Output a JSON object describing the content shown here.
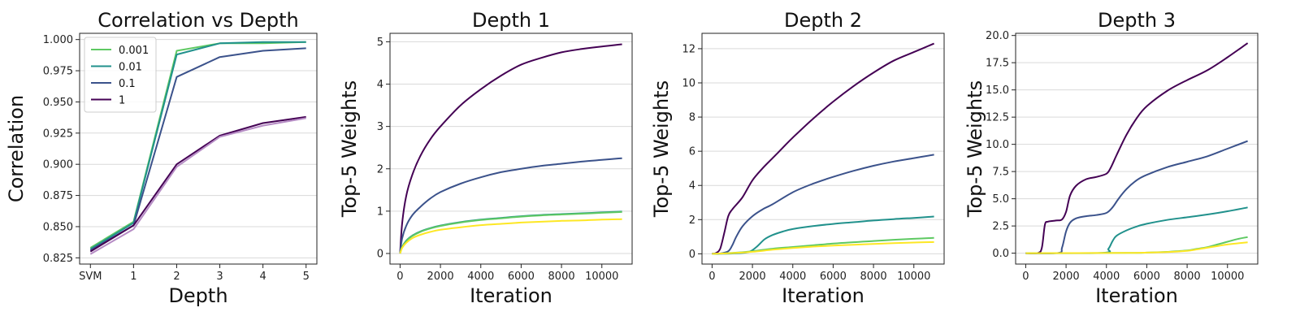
{
  "colors": {
    "0.001": "#5ec962",
    "0.01": "#21918c",
    "0.1": "#3b528b",
    "1": "#440154",
    "extra": "#fde725"
  },
  "chart_data": [
    {
      "type": "line",
      "title": "Correlation vs Depth",
      "xlabel": "Depth",
      "ylabel": "Correlation",
      "categories": [
        "SVM",
        "1",
        "2",
        "3",
        "4",
        "5"
      ],
      "ylim": [
        0.82,
        1.005
      ],
      "yticks": [
        "0.825",
        "0.850",
        "0.875",
        "0.900",
        "0.925",
        "0.950",
        "0.975",
        "1.000"
      ],
      "grid": "horizontal",
      "legend_position": "top-left",
      "series": [
        {
          "name": "0.001",
          "color": "#5ec962",
          "values": [
            0.833,
            0.854,
            0.991,
            0.997,
            0.997,
            0.998
          ]
        },
        {
          "name": "0.01",
          "color": "#21918c",
          "values": [
            0.832,
            0.853,
            0.988,
            0.997,
            0.998,
            0.998
          ]
        },
        {
          "name": "0.1",
          "color": "#3b528b",
          "values": [
            0.831,
            0.851,
            0.97,
            0.986,
            0.991,
            0.993
          ]
        },
        {
          "name": "1",
          "color": "#440154",
          "values": [
            0.83,
            0.851,
            0.9,
            0.923,
            0.933,
            0.938
          ]
        },
        {
          "name": "",
          "color": "#b58bc4",
          "values": [
            0.828,
            0.848,
            0.898,
            0.922,
            0.931,
            0.937
          ]
        }
      ]
    },
    {
      "type": "line",
      "title": "Depth 1",
      "xlabel": "Iteration",
      "ylabel": "Top-5 Weights",
      "xlim": [
        -500,
        11500
      ],
      "ylim": [
        -0.25,
        5.2
      ],
      "xticks": [
        "0",
        "2000",
        "4000",
        "6000",
        "8000",
        "10000"
      ],
      "yticks": [
        "0",
        "1",
        "2",
        "3",
        "4",
        "5"
      ],
      "grid": "horizontal",
      "series": [
        {
          "name": "1",
          "color": "#440154",
          "x": [
            0,
            100,
            300,
            600,
            1000,
            1500,
            2000,
            3000,
            4000,
            5000,
            6000,
            7000,
            8000,
            9000,
            10000,
            11000
          ],
          "y": [
            0,
            0.7,
            1.35,
            1.85,
            2.3,
            2.7,
            3.0,
            3.5,
            3.88,
            4.2,
            4.46,
            4.62,
            4.75,
            4.83,
            4.89,
            4.94
          ]
        },
        {
          "name": "0.1",
          "color": "#3b528b",
          "x": [
            0,
            100,
            300,
            600,
            1000,
            1500,
            2000,
            3000,
            4000,
            5000,
            6000,
            7000,
            8000,
            9000,
            10000,
            11000
          ],
          "y": [
            0,
            0.35,
            0.65,
            0.9,
            1.1,
            1.3,
            1.45,
            1.65,
            1.8,
            1.92,
            2.0,
            2.07,
            2.12,
            2.17,
            2.21,
            2.25
          ]
        },
        {
          "name": "0.01",
          "color": "#21918c",
          "x": [
            0,
            100,
            300,
            600,
            1000,
            1500,
            2000,
            3000,
            4000,
            5000,
            6000,
            7000,
            8000,
            9000,
            10000,
            11000
          ],
          "y": [
            0,
            0.15,
            0.3,
            0.42,
            0.52,
            0.6,
            0.66,
            0.74,
            0.8,
            0.84,
            0.88,
            0.91,
            0.93,
            0.95,
            0.97,
            0.99
          ]
        },
        {
          "name": "0.001",
          "color": "#5ec962",
          "x": [
            0,
            100,
            300,
            600,
            1000,
            1500,
            2000,
            3000,
            4000,
            5000,
            6000,
            7000,
            8000,
            9000,
            10000,
            11000
          ],
          "y": [
            0,
            0.15,
            0.29,
            0.41,
            0.51,
            0.59,
            0.65,
            0.73,
            0.79,
            0.83,
            0.87,
            0.9,
            0.92,
            0.94,
            0.96,
            0.98
          ]
        },
        {
          "name": "",
          "color": "#fde725",
          "x": [
            0,
            100,
            300,
            600,
            1000,
            1500,
            2000,
            3000,
            4000,
            5000,
            6000,
            7000,
            8000,
            9000,
            10000,
            11000
          ],
          "y": [
            0,
            0.13,
            0.25,
            0.36,
            0.44,
            0.51,
            0.56,
            0.62,
            0.67,
            0.7,
            0.73,
            0.75,
            0.77,
            0.78,
            0.8,
            0.81
          ]
        }
      ]
    },
    {
      "type": "line",
      "title": "Depth 2",
      "xlabel": "Iteration",
      "ylabel": "Top-5 Weights",
      "xlim": [
        -500,
        11500
      ],
      "ylim": [
        -0.6,
        12.9
      ],
      "xticks": [
        "0",
        "2000",
        "4000",
        "6000",
        "8000",
        "10000"
      ],
      "yticks": [
        "0",
        "2",
        "4",
        "6",
        "8",
        "10",
        "12"
      ],
      "grid": "horizontal",
      "series": [
        {
          "name": "1",
          "color": "#440154",
          "x": [
            0,
            200,
            400,
            600,
            800,
            1000,
            1500,
            2000,
            2500,
            3000,
            3500,
            4000,
            5000,
            6000,
            7000,
            8000,
            9000,
            10000,
            11000
          ],
          "y": [
            0,
            0.05,
            0.3,
            1.2,
            2.2,
            2.6,
            3.3,
            4.3,
            5.0,
            5.6,
            6.2,
            6.8,
            7.9,
            8.9,
            9.8,
            10.6,
            11.3,
            11.8,
            12.3
          ]
        },
        {
          "name": "0.1",
          "color": "#3b528b",
          "x": [
            0,
            400,
            800,
            1000,
            1200,
            1500,
            2000,
            2500,
            3000,
            4000,
            5000,
            6000,
            7000,
            8000,
            9000,
            10000,
            11000
          ],
          "y": [
            0,
            0.02,
            0.15,
            0.5,
            1.0,
            1.6,
            2.2,
            2.6,
            2.9,
            3.6,
            4.1,
            4.5,
            4.85,
            5.15,
            5.4,
            5.6,
            5.8
          ]
        },
        {
          "name": "0.01",
          "color": "#21918c",
          "x": [
            0,
            1000,
            1800,
            2200,
            2600,
            3000,
            3500,
            4000,
            5000,
            6000,
            7000,
            8000,
            9000,
            10000,
            11000
          ],
          "y": [
            0,
            0.02,
            0.1,
            0.4,
            0.85,
            1.1,
            1.3,
            1.45,
            1.62,
            1.75,
            1.85,
            1.95,
            2.03,
            2.1,
            2.18
          ]
        },
        {
          "name": "0.001",
          "color": "#5ec962",
          "x": [
            0,
            1000,
            2000,
            3000,
            4000,
            5000,
            6000,
            7000,
            8000,
            9000,
            10000,
            11000
          ],
          "y": [
            0,
            0.05,
            0.15,
            0.3,
            0.4,
            0.5,
            0.6,
            0.68,
            0.75,
            0.82,
            0.88,
            0.93
          ]
        },
        {
          "name": "",
          "color": "#fde725",
          "x": [
            0,
            1000,
            2000,
            3000,
            4000,
            5000,
            6000,
            7000,
            8000,
            9000,
            10000,
            11000
          ],
          "y": [
            0,
            0.04,
            0.12,
            0.24,
            0.34,
            0.42,
            0.48,
            0.53,
            0.58,
            0.62,
            0.66,
            0.69
          ]
        }
      ]
    },
    {
      "type": "line",
      "title": "Depth 3",
      "xlabel": "Iteration",
      "ylabel": "Top-5 Weights",
      "xlim": [
        -500,
        11500
      ],
      "ylim": [
        -1.0,
        20.2
      ],
      "xticks": [
        "0",
        "2000",
        "4000",
        "6000",
        "8000",
        "10000"
      ],
      "yticks": [
        "0.0",
        "2.5",
        "5.0",
        "7.5",
        "10.0",
        "12.5",
        "15.0",
        "17.5",
        "20.0"
      ],
      "grid": "horizontal",
      "series": [
        {
          "name": "1",
          "color": "#440154",
          "x": [
            0,
            600,
            800,
            950,
            1100,
            1500,
            1800,
            2000,
            2200,
            2500,
            3000,
            3500,
            4000,
            4200,
            4500,
            5000,
            5500,
            6000,
            7000,
            8000,
            9000,
            10000,
            11000
          ],
          "y": [
            0,
            0.02,
            0.5,
            2.6,
            2.9,
            3.0,
            3.1,
            3.8,
            5.3,
            6.2,
            6.8,
            7.0,
            7.3,
            7.8,
            9.0,
            10.9,
            12.4,
            13.5,
            14.9,
            15.9,
            16.8,
            18.0,
            19.3
          ]
        },
        {
          "name": "0.1",
          "color": "#3b528b",
          "x": [
            0,
            1600,
            1800,
            2000,
            2200,
            2500,
            3000,
            3500,
            4000,
            4300,
            4600,
            5000,
            5500,
            6000,
            7000,
            8000,
            9000,
            10000,
            11000
          ],
          "y": [
            0,
            0.02,
            0.5,
            2.0,
            2.8,
            3.2,
            3.4,
            3.5,
            3.7,
            4.2,
            5.0,
            5.9,
            6.7,
            7.2,
            7.9,
            8.4,
            8.9,
            9.6,
            10.3
          ]
        },
        {
          "name": "0.01",
          "color": "#21918c",
          "x": [
            0,
            3800,
            4100,
            4300,
            4500,
            5000,
            5500,
            6000,
            7000,
            8000,
            9000,
            10000,
            11000
          ],
          "y": [
            0,
            0.03,
            0.4,
            1.1,
            1.6,
            2.1,
            2.45,
            2.7,
            3.05,
            3.3,
            3.55,
            3.85,
            4.2
          ]
        },
        {
          "name": "0.001",
          "color": "#5ec962",
          "x": [
            0,
            5000,
            6000,
            7000,
            8000,
            8500,
            9000,
            9500,
            10000,
            10500,
            11000
          ],
          "y": [
            0,
            0.02,
            0.05,
            0.12,
            0.25,
            0.4,
            0.55,
            0.8,
            1.05,
            1.3,
            1.48
          ]
        },
        {
          "name": "",
          "color": "#fde725",
          "x": [
            0,
            5000,
            6000,
            7000,
            8000,
            8500,
            9000,
            9500,
            10000,
            10500,
            11000
          ],
          "y": [
            0,
            0.02,
            0.05,
            0.1,
            0.22,
            0.35,
            0.5,
            0.65,
            0.8,
            0.9,
            1.0
          ]
        }
      ]
    }
  ]
}
